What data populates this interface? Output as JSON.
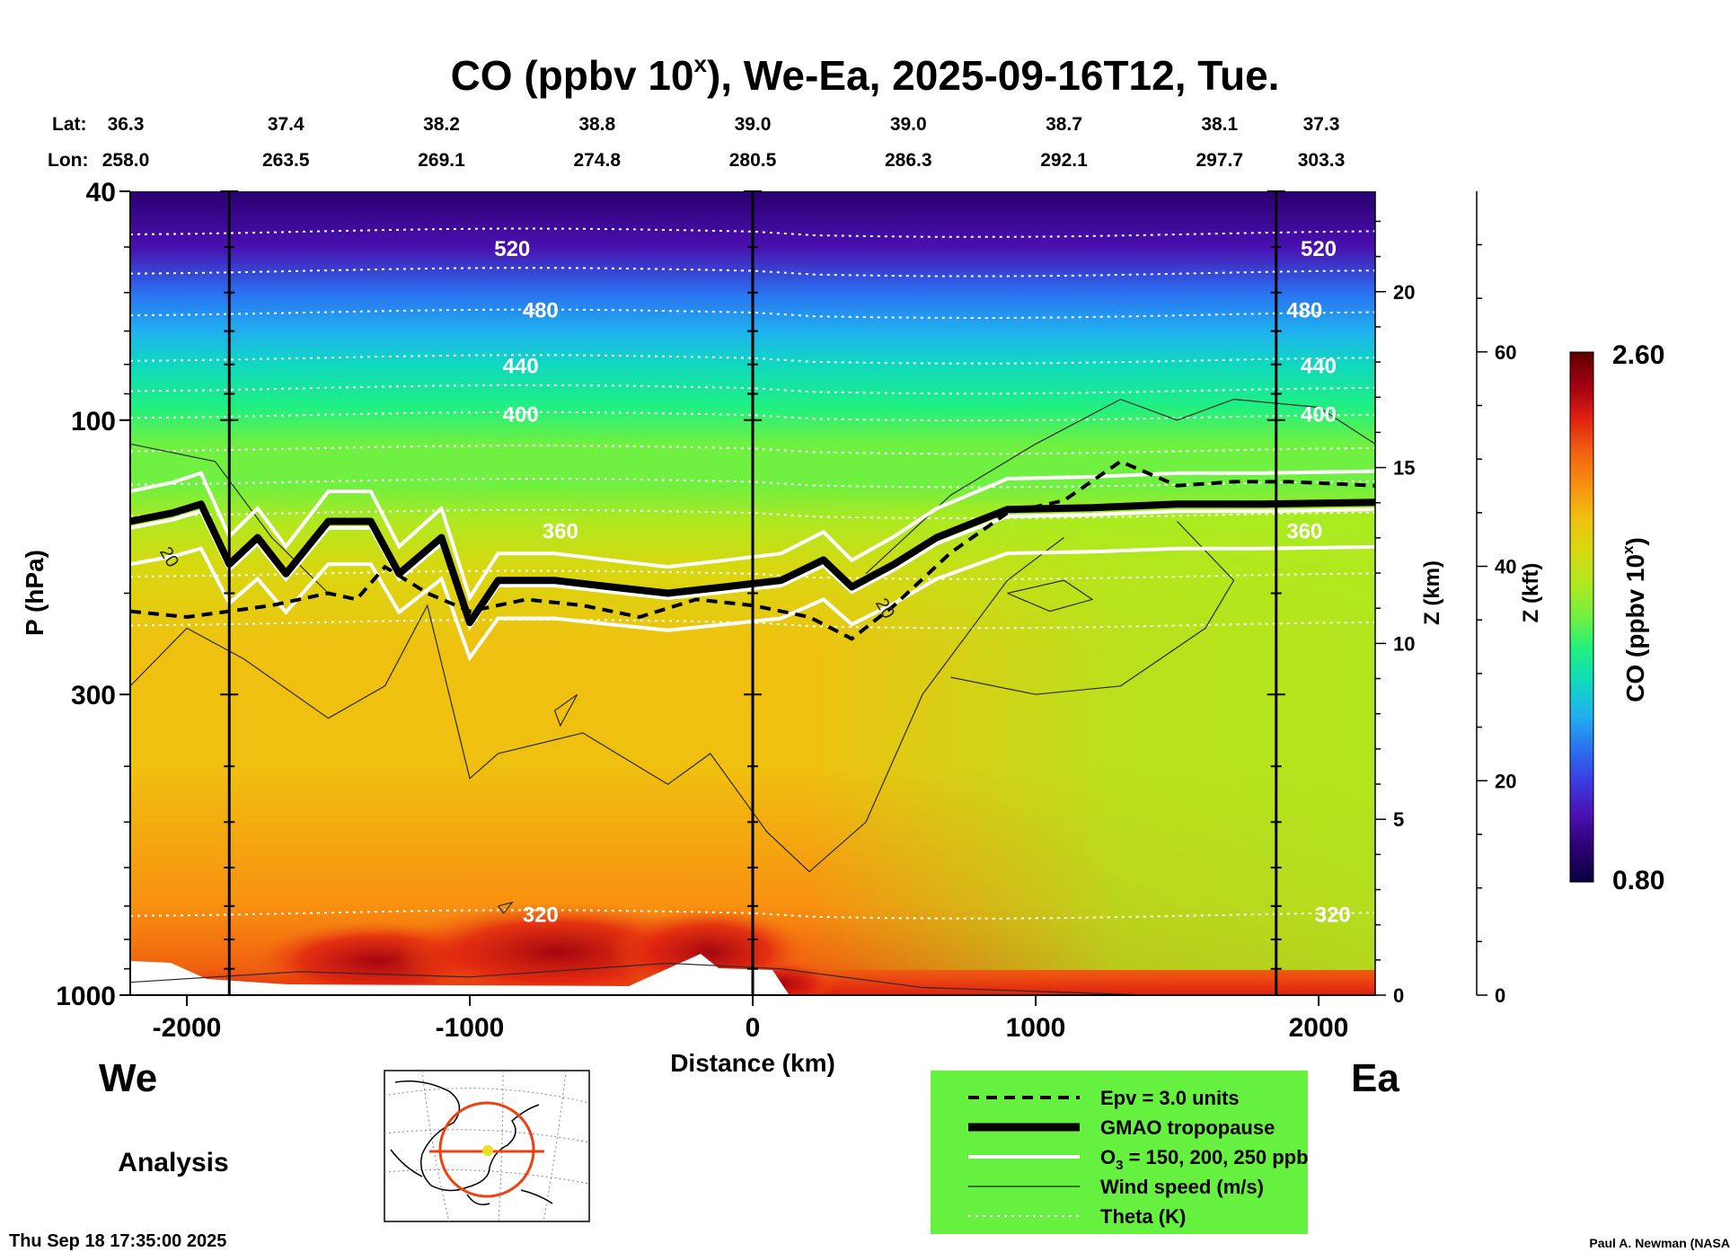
{
  "header": {
    "title_prefix": "CO (ppbv 10",
    "title_exp": "x",
    "title_suffix": "), We-Ea, 2025-09-16T12, Tue."
  },
  "coords": {
    "lat_label": "Lat:",
    "lon_label": "Lon:",
    "lat": [
      "36.3",
      "37.4",
      "38.2",
      "38.8",
      "39.0",
      "39.0",
      "38.7",
      "38.1",
      "37.3"
    ],
    "lon": [
      "258.0",
      "263.5",
      "269.1",
      "274.8",
      "280.5",
      "286.3",
      "292.1",
      "297.7",
      "303.3"
    ],
    "distance_km": [
      -2200,
      -1650,
      -1100,
      -550,
      0,
      550,
      1100,
      1650,
      2200
    ]
  },
  "direction": {
    "west": "We",
    "east": "Ea"
  },
  "analysis_label": "Analysis",
  "footer": {
    "timestamp": "Thu Sep 18 17:35:00 2025",
    "credit": "Paul A. Newman (NASA"
  },
  "colorbar": {
    "label_prefix": "CO (ppbv 10",
    "label_exp": "x",
    "label_suffix": ")",
    "max_label": "2.60",
    "min_label": "0.80",
    "min": 0.8,
    "max": 2.6,
    "colors": [
      "#0a0040",
      "#2a0070",
      "#4a10b0",
      "#3a3ae0",
      "#2a70f0",
      "#20b0f0",
      "#10d8c0",
      "#20f080",
      "#70f040",
      "#b0e820",
      "#d8d810",
      "#f0c010",
      "#f89010",
      "#f06010",
      "#e02010",
      "#a00010",
      "#600000"
    ]
  },
  "chart_data": {
    "type": "heatmap",
    "title": "CO (ppbv 10^x), We-Ea, 2025-09-16T12, Tue.",
    "xlabel": "Distance (km)",
    "ylabel": "P (hPa)",
    "z_km_label": "Z (km)",
    "z_kft_label": "Z (kft)",
    "xlim": [
      -2200,
      2200
    ],
    "ylim_hpa": [
      1000,
      40
    ],
    "x_ticks": [
      -2000,
      -1000,
      0,
      1000,
      2000
    ],
    "x_tick_labels": [
      "-2000",
      "-1000",
      "0",
      "1000",
      "2000"
    ],
    "y_ticks": [
      40,
      100,
      300,
      1000
    ],
    "y_tick_labels": [
      "40",
      "100",
      "300",
      "1000"
    ],
    "z_km_ticks": [
      0,
      5,
      10,
      15,
      20
    ],
    "z_km_tick_labels": [
      "0",
      "5",
      "10",
      "15",
      "20"
    ],
    "z_kft_ticks": [
      0,
      20,
      40,
      60
    ],
    "z_kft_tick_labels": [
      "0",
      "20",
      "40",
      "60"
    ],
    "vertical_lines_km": [
      -1850,
      0,
      1850
    ],
    "co_profile": [
      {
        "p": 40,
        "v": 0.9
      },
      {
        "p": 50,
        "v": 1.05
      },
      {
        "p": 60,
        "v": 1.2
      },
      {
        "p": 70,
        "v": 1.35
      },
      {
        "p": 80,
        "v": 1.5
      },
      {
        "p": 95,
        "v": 1.6
      },
      {
        "p": 110,
        "v": 1.65
      },
      {
        "p": 130,
        "v": 1.68
      },
      {
        "p": 150,
        "v": 1.8
      },
      {
        "p": 180,
        "v": 1.95
      },
      {
        "p": 250,
        "v": 2.0
      },
      {
        "p": 400,
        "v": 2.05
      },
      {
        "p": 700,
        "v": 2.1
      },
      {
        "p": 900,
        "v": 2.3
      },
      {
        "p": 1000,
        "v": 2.4
      }
    ],
    "theta_contours": [
      {
        "label": "520",
        "label_positions_km": [
          -850,
          2000
        ]
      },
      {
        "label": "480",
        "label_positions_km": [
          -750,
          1950
        ]
      },
      {
        "label": "440",
        "label_positions_km": [
          -820,
          2000
        ]
      },
      {
        "label": "400",
        "label_positions_km": [
          -820,
          2000
        ]
      },
      {
        "label": "360",
        "label_positions_km": [
          -680,
          1950
        ]
      },
      {
        "label": "320",
        "label_positions_km": [
          -750,
          2050
        ]
      }
    ],
    "wind_contour_labels": [
      {
        "label": "20",
        "x_km": -2080
      },
      {
        "label": "20",
        "x_km": 450
      }
    ],
    "gmao_tropopause": [
      {
        "x": -2200,
        "p": 150
      },
      {
        "x": -2050,
        "p": 145
      },
      {
        "x": -1950,
        "p": 140
      },
      {
        "x": -1850,
        "p": 178
      },
      {
        "x": -1750,
        "p": 160
      },
      {
        "x": -1650,
        "p": 185
      },
      {
        "x": -1500,
        "p": 150
      },
      {
        "x": -1350,
        "p": 150
      },
      {
        "x": -1250,
        "p": 185
      },
      {
        "x": -1100,
        "p": 160
      },
      {
        "x": -1000,
        "p": 225
      },
      {
        "x": -900,
        "p": 190
      },
      {
        "x": -700,
        "p": 190
      },
      {
        "x": -500,
        "p": 195
      },
      {
        "x": -300,
        "p": 200
      },
      {
        "x": -100,
        "p": 195
      },
      {
        "x": 100,
        "p": 190
      },
      {
        "x": 250,
        "p": 175
      },
      {
        "x": 350,
        "p": 195
      },
      {
        "x": 500,
        "p": 178
      },
      {
        "x": 650,
        "p": 160
      },
      {
        "x": 900,
        "p": 143
      },
      {
        "x": 1200,
        "p": 142
      },
      {
        "x": 1500,
        "p": 140
      },
      {
        "x": 1800,
        "p": 140
      },
      {
        "x": 2200,
        "p": 139
      }
    ],
    "epv_3_units": [
      {
        "x": -2200,
        "p": 215
      },
      {
        "x": -2000,
        "p": 220
      },
      {
        "x": -1850,
        "p": 215
      },
      {
        "x": -1700,
        "p": 210
      },
      {
        "x": -1500,
        "p": 200
      },
      {
        "x": -1400,
        "p": 205
      },
      {
        "x": -1300,
        "p": 180
      },
      {
        "x": -1150,
        "p": 200
      },
      {
        "x": -1000,
        "p": 215
      },
      {
        "x": -800,
        "p": 205
      },
      {
        "x": -600,
        "p": 210
      },
      {
        "x": -400,
        "p": 220
      },
      {
        "x": -200,
        "p": 205
      },
      {
        "x": 0,
        "p": 210
      },
      {
        "x": 200,
        "p": 220
      },
      {
        "x": 350,
        "p": 240
      },
      {
        "x": 500,
        "p": 210
      },
      {
        "x": 700,
        "p": 170
      },
      {
        "x": 900,
        "p": 145
      },
      {
        "x": 1100,
        "p": 138
      },
      {
        "x": 1300,
        "p": 118
      },
      {
        "x": 1500,
        "p": 130
      },
      {
        "x": 1700,
        "p": 128
      },
      {
        "x": 1900,
        "p": 128
      },
      {
        "x": 2200,
        "p": 130
      }
    ],
    "o3_contours_ppb": [
      150,
      200,
      250
    ]
  },
  "legend": {
    "items": [
      {
        "label": "Epv = 3.0 units",
        "style": "dashed"
      },
      {
        "label": "GMAO tropopause",
        "style": "thick"
      },
      {
        "label_prefix": "O",
        "label_sub": "3",
        "label": " = 150, 200, 250 ppb",
        "style": "white"
      },
      {
        "label": "Wind speed (m/s)",
        "style": "thin"
      },
      {
        "label": "Theta (K)",
        "style": "dotted"
      }
    ],
    "background": "#66f040"
  }
}
